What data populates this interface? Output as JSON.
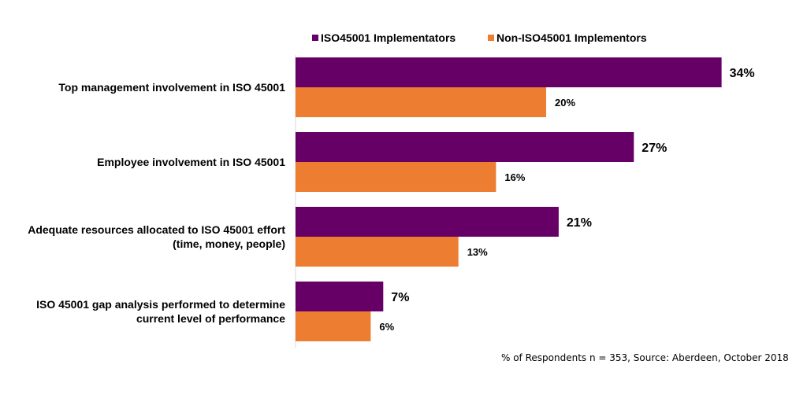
{
  "chart_data": {
    "type": "bar",
    "orientation": "horizontal",
    "categories": [
      [
        "Top management involvement in ISO 45001"
      ],
      [
        "Employee involvement in ISO 45001"
      ],
      [
        "Adequate resources allocated to ISO 45001 effort",
        "(time, money, people)"
      ],
      [
        "ISO 45001 gap analysis performed to determine",
        "current level of performance"
      ]
    ],
    "series": [
      {
        "name": "ISO45001 Implementators",
        "color": "#660066",
        "values": [
          34,
          27,
          21,
          7
        ],
        "labels": [
          "34%",
          "27%",
          "21%",
          "7%"
        ]
      },
      {
        "name": "Non-ISO45001 Implementors",
        "color": "#ED7D31",
        "values": [
          20,
          16,
          13,
          6
        ],
        "labels": [
          "20%",
          "16%",
          "13%",
          "6%"
        ]
      }
    ],
    "xlim": [
      0,
      40
    ],
    "unit": "%",
    "grid": false,
    "legend": "top",
    "footnote": "% of Respondents n = 353, Source: Aberdeen, October 2018"
  }
}
